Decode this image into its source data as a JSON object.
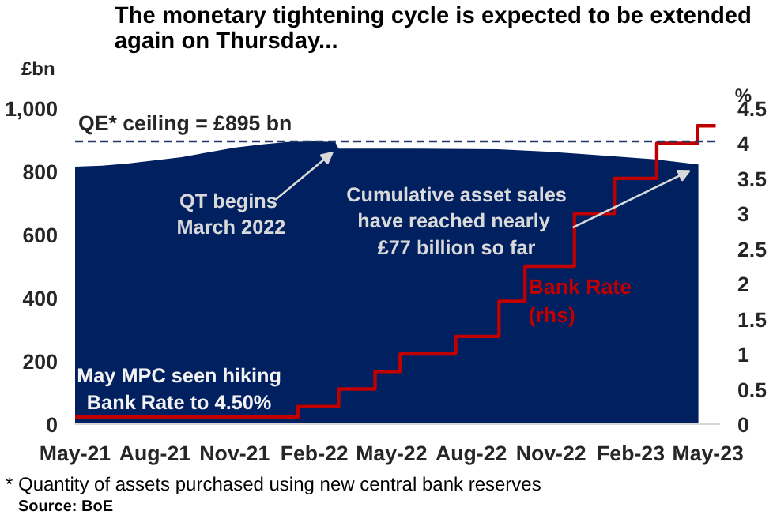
{
  "chart_data": {
    "type": "area",
    "title": "The monetary tightening cycle is expected to be extended\nagain on Thursday...",
    "ylabel": "£bn",
    "y2label": "%",
    "xlim": [
      "2021-05-01",
      "2023-05-15"
    ],
    "xticks": [
      {
        "value": "2021-05-01",
        "label": "May-21"
      },
      {
        "value": "2021-08-01",
        "label": "Aug-21"
      },
      {
        "value": "2021-11-01",
        "label": "Nov-21"
      },
      {
        "value": "2022-02-01",
        "label": "Feb-22"
      },
      {
        "value": "2022-05-01",
        "label": "May-22"
      },
      {
        "value": "2022-08-01",
        "label": "Aug-22"
      },
      {
        "value": "2022-11-01",
        "label": "Nov-22"
      },
      {
        "value": "2023-02-01",
        "label": "Feb-23"
      },
      {
        "value": "2023-05-01",
        "label": "May-23"
      }
    ],
    "ylim": [
      0,
      1000
    ],
    "yticks": [
      0,
      200,
      400,
      600,
      800,
      {
        "value": 1000,
        "label": "1,000"
      }
    ],
    "y2lim": [
      0,
      4.5
    ],
    "y2ticks": [
      0,
      0.5,
      1,
      1.5,
      2,
      2.5,
      3,
      3.5,
      4,
      4.5
    ],
    "series": [
      {
        "color": "#002060",
        "x": [
          "2021-05-01",
          "2021-06-01",
          "2021-07-01",
          "2021-08-01",
          "2021-09-01",
          "2021-10-01",
          "2021-11-01",
          "2021-12-01",
          "2022-01-01",
          "2022-02-01",
          "2022-02-25",
          "2022-03-01",
          "2022-06-01",
          "2022-09-01",
          "2022-11-01",
          "2023-01-01",
          "2023-03-01",
          "2023-04-20"
        ],
        "values": [
          815,
          818,
          825,
          835,
          845,
          860,
          875,
          885,
          893,
          895,
          893,
          872,
          872,
          870,
          862,
          850,
          838,
          822
        ]
      },
      {
        "type": "step",
        "name": "Bank Rate\n(rhs)",
        "color": "#c00000",
        "axis": "y2",
        "x": [
          "2021-05-01",
          "2022-01-13",
          "2022-03-01",
          "2022-04-12",
          "2022-05-11",
          "2022-07-14",
          "2022-09-02",
          "2022-10-02",
          "2022-11-28",
          "2023-01-13",
          "2023-03-03",
          "2023-04-19",
          "2023-05-10"
        ],
        "values": [
          0.1,
          0.25,
          0.5,
          0.75,
          1.0,
          1.25,
          1.75,
          2.25,
          3.0,
          3.5,
          4.0,
          4.25,
          4.25
        ]
      }
    ],
    "ref_lines": [
      {
        "axis": "y",
        "value": 895,
        "label": "QE* ceiling = £895 bn",
        "color": "#1f3864",
        "line_style": "dashed"
      }
    ],
    "annotations": [
      {
        "text": "QT  begins\nMarch 2022",
        "x": "2022-02-25",
        "y": 880
      },
      {
        "text": "Cumulative asset sales\nhave reached  nearly\n£77 billion so far",
        "x": "2023-04-15",
        "y": 822
      },
      "May MPC seen hiking\nBank Rate to 4.50%",
      "* Quantity of assets purchased using new central bank reserves",
      "Source: BoE"
    ],
    "grid": false,
    "legend": false
  }
}
